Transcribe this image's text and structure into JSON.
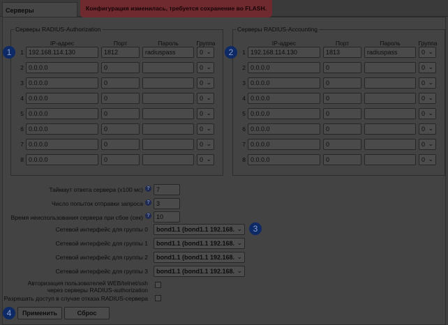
{
  "tab": "Серверы",
  "banner": "Конфигурация изменилась, требуется сохранение во FLASH.",
  "columns": {
    "ip": "IP-адрес",
    "port": "Порт",
    "password": "Пароль",
    "group": "Группа"
  },
  "auth": {
    "legend": "Серверы RADIUS-Authorization",
    "rows": [
      {
        "n": "1",
        "ip": "192.168.114.130",
        "port": "1812",
        "password": "radiuspass",
        "group": "0"
      },
      {
        "n": "2",
        "ip": "0.0.0.0",
        "port": "0",
        "password": "",
        "group": "0"
      },
      {
        "n": "3",
        "ip": "0.0.0.0",
        "port": "0",
        "password": "",
        "group": "0"
      },
      {
        "n": "4",
        "ip": "0.0.0.0",
        "port": "0",
        "password": "",
        "group": "0"
      },
      {
        "n": "5",
        "ip": "0.0.0.0",
        "port": "0",
        "password": "",
        "group": "0"
      },
      {
        "n": "6",
        "ip": "0.0.0.0",
        "port": "0",
        "password": "",
        "group": "0"
      },
      {
        "n": "7",
        "ip": "0.0.0.0",
        "port": "0",
        "password": "",
        "group": "0"
      },
      {
        "n": "8",
        "ip": "0.0.0.0",
        "port": "0",
        "password": "",
        "group": "0"
      }
    ]
  },
  "acct": {
    "legend": "Серверы RADIUS-Accounting",
    "rows": [
      {
        "n": "1",
        "ip": "192.168.114.130",
        "port": "1813",
        "password": "radiuspass",
        "group": "0"
      },
      {
        "n": "2",
        "ip": "0.0.0.0",
        "port": "0",
        "password": "",
        "group": "0"
      },
      {
        "n": "3",
        "ip": "0.0.0.0",
        "port": "0",
        "password": "",
        "group": "0"
      },
      {
        "n": "4",
        "ip": "0.0.0.0",
        "port": "0",
        "password": "",
        "group": "0"
      },
      {
        "n": "5",
        "ip": "0.0.0.0",
        "port": "0",
        "password": "",
        "group": "0"
      },
      {
        "n": "6",
        "ip": "0.0.0.0",
        "port": "0",
        "password": "",
        "group": "0"
      },
      {
        "n": "7",
        "ip": "0.0.0.0",
        "port": "0",
        "password": "",
        "group": "0"
      },
      {
        "n": "8",
        "ip": "0.0.0.0",
        "port": "0",
        "password": "",
        "group": "0"
      }
    ]
  },
  "settings": {
    "timeout": {
      "label": "Таймаут ответа сервера (x100 мс)",
      "value": "7"
    },
    "retries": {
      "label": "Число попыток отправки запроса",
      "value": "3"
    },
    "deadtime": {
      "label": "Время неиспользования сервера при сбое (сек)",
      "value": "10"
    },
    "ifaces": [
      {
        "label": "Сетевой интерфейс для группы 0",
        "value": "bond1.1 (bond1.1 192.168.1"
      },
      {
        "label": "Сетевой интерфейс для группы 1",
        "value": "bond1.1 (bond1.1 192.168.1"
      },
      {
        "label": "Сетевой интерфейс для группы 2",
        "value": "bond1.1 (bond1.1 192.168.1"
      },
      {
        "label": "Сетевой интерфейс для группы 3",
        "value": "bond1.1 (bond1.1 192.168.1"
      }
    ],
    "webauth": {
      "label1": "Авторизация пользователей WEB/telnet/ssh",
      "label2": "через серверы RADIUS-authorization",
      "checked": false
    },
    "allow": {
      "label": "Разрешать доступ в случае отказа RADIUS-сервера",
      "checked": false
    }
  },
  "buttons": {
    "apply": "Применить",
    "reset": "Сброс"
  },
  "badges": [
    "1",
    "2",
    "3",
    "4"
  ]
}
